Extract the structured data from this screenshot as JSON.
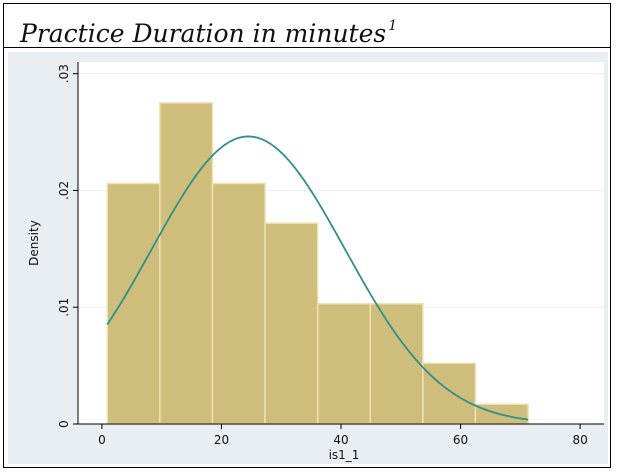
{
  "header": {
    "title": "Practice Duration in minutes",
    "footnote_mark": "1"
  },
  "chart_data": {
    "type": "bar",
    "subtype": "histogram",
    "xlabel": "is1_1",
    "ylabel": "Density",
    "xlim": [
      -4,
      84
    ],
    "ylim": [
      0,
      0.031
    ],
    "x_ticks": [
      0,
      20,
      40,
      60,
      80
    ],
    "x_tick_labels": [
      "0",
      "20",
      "40",
      "60",
      "80"
    ],
    "y_ticks": [
      0,
      0.01,
      0.02,
      0.03
    ],
    "y_tick_labels": [
      "0",
      ".01",
      ".02",
      ".03"
    ],
    "bins": [
      {
        "x0": 0.9,
        "x1": 9.7,
        "density": 0.0206
      },
      {
        "x0": 9.7,
        "x1": 18.5,
        "density": 0.0275
      },
      {
        "x0": 18.5,
        "x1": 27.3,
        "density": 0.0206
      },
      {
        "x0": 27.3,
        "x1": 36.1,
        "density": 0.0172
      },
      {
        "x0": 36.1,
        "x1": 44.9,
        "density": 0.0103
      },
      {
        "x0": 44.9,
        "x1": 53.7,
        "density": 0.0103
      },
      {
        "x0": 53.7,
        "x1": 62.5,
        "density": 0.0052
      },
      {
        "x0": 62.5,
        "x1": 71.3,
        "density": 0.0017
      }
    ],
    "normal_curve": {
      "mean": 24.5,
      "sd": 16.2,
      "x_range": [
        0.9,
        71.3
      ]
    },
    "grid": true,
    "colors": {
      "bar_fill": "#cfbe7b",
      "bar_edge": "#ede2b4",
      "curve": "#2e9089",
      "plot_bg": "#ffffff",
      "outer_bg": "#e9eef2",
      "grid": "#eaf0f3"
    }
  }
}
